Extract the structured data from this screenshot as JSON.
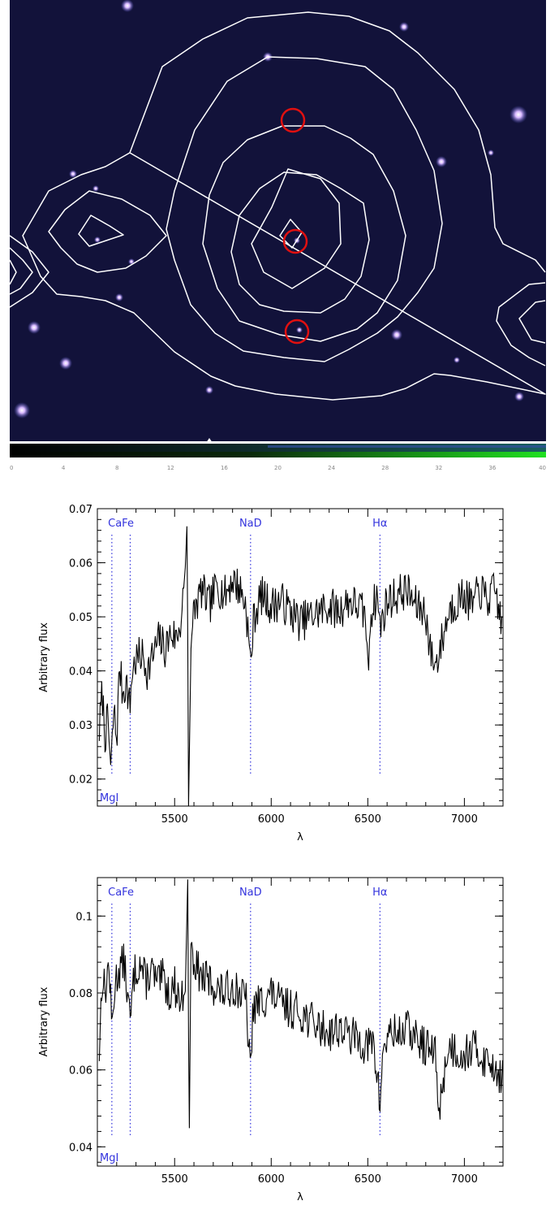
{
  "image_panel": {
    "colorbar_ticks": [
      "0",
      "4",
      "8",
      "12",
      "16",
      "20",
      "24",
      "28",
      "32",
      "36",
      "40"
    ],
    "colors": {
      "sky": "#12123a",
      "contour": "#ffffff",
      "marker": "#e01010"
    }
  },
  "chart_data": [
    {
      "type": "line",
      "title": "",
      "xlabel": "λ",
      "ylabel": "Arbitrary  flux",
      "xlim": [
        5100,
        7200
      ],
      "ylim": [
        0.015,
        0.07
      ],
      "xticks": [
        5500,
        6000,
        6500,
        7000
      ],
      "yticks": [
        0.02,
        0.03,
        0.04,
        0.05,
        0.06,
        0.07
      ],
      "ytick_labels": [
        "0.02",
        "0.03",
        "0.04",
        "0.05",
        "0.06",
        "0.07"
      ],
      "lines": [
        {
          "label": "MgI",
          "x": 5175,
          "label_pos": "bottom"
        },
        {
          "label": "CaFe",
          "x": 5270,
          "label_pos": "top"
        },
        {
          "label": "NaD",
          "x": 5893,
          "label_pos": "top"
        },
        {
          "label": "Hα",
          "x": 6563,
          "label_pos": "top"
        }
      ],
      "line_color": "#3333dd",
      "series_knots": [
        [
          5110,
          0.029
        ],
        [
          5125,
          0.036
        ],
        [
          5140,
          0.028
        ],
        [
          5155,
          0.031
        ],
        [
          5170,
          0.021
        ],
        [
          5185,
          0.033
        ],
        [
          5200,
          0.027
        ],
        [
          5215,
          0.041
        ],
        [
          5230,
          0.036
        ],
        [
          5250,
          0.038
        ],
        [
          5268,
          0.033
        ],
        [
          5280,
          0.04
        ],
        [
          5300,
          0.042
        ],
        [
          5330,
          0.043
        ],
        [
          5360,
          0.04
        ],
        [
          5390,
          0.043
        ],
        [
          5420,
          0.046
        ],
        [
          5450,
          0.044
        ],
        [
          5480,
          0.047
        ],
        [
          5510,
          0.046
        ],
        [
          5535,
          0.05
        ],
        [
          5555,
          0.059
        ],
        [
          5565,
          0.068
        ],
        [
          5572,
          0.015
        ],
        [
          5585,
          0.045
        ],
        [
          5600,
          0.051
        ],
        [
          5640,
          0.055
        ],
        [
          5680,
          0.052
        ],
        [
          5720,
          0.056
        ],
        [
          5760,
          0.054
        ],
        [
          5800,
          0.057
        ],
        [
          5840,
          0.055
        ],
        [
          5870,
          0.052
        ],
        [
          5893,
          0.041
        ],
        [
          5910,
          0.05
        ],
        [
          5950,
          0.054
        ],
        [
          6000,
          0.052
        ],
        [
          6050,
          0.053
        ],
        [
          6100,
          0.051
        ],
        [
          6150,
          0.049
        ],
        [
          6200,
          0.05
        ],
        [
          6250,
          0.051
        ],
        [
          6300,
          0.052
        ],
        [
          6350,
          0.051
        ],
        [
          6400,
          0.053
        ],
        [
          6450,
          0.052
        ],
        [
          6490,
          0.05
        ],
        [
          6500,
          0.039
        ],
        [
          6515,
          0.051
        ],
        [
          6550,
          0.054
        ],
        [
          6563,
          0.048
        ],
        [
          6600,
          0.053
        ],
        [
          6650,
          0.054
        ],
        [
          6700,
          0.055
        ],
        [
          6750,
          0.052
        ],
        [
          6800,
          0.051
        ],
        [
          6820,
          0.044
        ],
        [
          6850,
          0.041
        ],
        [
          6880,
          0.045
        ],
        [
          6920,
          0.051
        ],
        [
          6960,
          0.053
        ],
        [
          7000,
          0.054
        ],
        [
          7040,
          0.052
        ],
        [
          7080,
          0.055
        ],
        [
          7120,
          0.053
        ],
        [
          7160,
          0.055
        ],
        [
          7200,
          0.047
        ]
      ]
    },
    {
      "type": "line",
      "title": "",
      "xlabel": "λ",
      "ylabel": "Arbitrary  flux",
      "xlim": [
        5100,
        7200
      ],
      "ylim": [
        0.035,
        0.11
      ],
      "xticks": [
        5500,
        6000,
        6500,
        7000
      ],
      "yticks": [
        0.04,
        0.06,
        0.08,
        0.1
      ],
      "ytick_labels": [
        "0.04",
        "0.06",
        "0.08",
        "0.1"
      ],
      "lines": [
        {
          "label": "MgI",
          "x": 5175,
          "label_pos": "bottom"
        },
        {
          "label": "CaFe",
          "x": 5270,
          "label_pos": "top"
        },
        {
          "label": "NaD",
          "x": 5893,
          "label_pos": "top"
        },
        {
          "label": "Hα",
          "x": 6563,
          "label_pos": "top"
        }
      ],
      "line_color": "#3333dd",
      "series_knots": [
        [
          5110,
          0.065
        ],
        [
          5125,
          0.085
        ],
        [
          5140,
          0.08
        ],
        [
          5160,
          0.088
        ],
        [
          5175,
          0.07
        ],
        [
          5190,
          0.082
        ],
        [
          5210,
          0.086
        ],
        [
          5240,
          0.088
        ],
        [
          5270,
          0.072
        ],
        [
          5290,
          0.085
        ],
        [
          5320,
          0.088
        ],
        [
          5350,
          0.083
        ],
        [
          5380,
          0.086
        ],
        [
          5410,
          0.082
        ],
        [
          5440,
          0.084
        ],
        [
          5470,
          0.08
        ],
        [
          5500,
          0.082
        ],
        [
          5530,
          0.078
        ],
        [
          5555,
          0.08
        ],
        [
          5568,
          0.11
        ],
        [
          5575,
          0.038
        ],
        [
          5585,
          0.095
        ],
        [
          5600,
          0.088
        ],
        [
          5640,
          0.084
        ],
        [
          5680,
          0.083
        ],
        [
          5720,
          0.081
        ],
        [
          5760,
          0.08
        ],
        [
          5800,
          0.082
        ],
        [
          5840,
          0.08
        ],
        [
          5870,
          0.078
        ],
        [
          5893,
          0.058
        ],
        [
          5905,
          0.076
        ],
        [
          5950,
          0.078
        ],
        [
          6000,
          0.08
        ],
        [
          6050,
          0.077
        ],
        [
          6100,
          0.076
        ],
        [
          6150,
          0.075
        ],
        [
          6200,
          0.073
        ],
        [
          6250,
          0.071
        ],
        [
          6300,
          0.07
        ],
        [
          6350,
          0.071
        ],
        [
          6400,
          0.069
        ],
        [
          6450,
          0.068
        ],
        [
          6500,
          0.066
        ],
        [
          6530,
          0.067
        ],
        [
          6563,
          0.051
        ],
        [
          6580,
          0.066
        ],
        [
          6620,
          0.07
        ],
        [
          6660,
          0.069
        ],
        [
          6700,
          0.071
        ],
        [
          6750,
          0.068
        ],
        [
          6800,
          0.066
        ],
        [
          6850,
          0.064
        ],
        [
          6870,
          0.048
        ],
        [
          6890,
          0.058
        ],
        [
          6920,
          0.066
        ],
        [
          6960,
          0.065
        ],
        [
          7000,
          0.064
        ],
        [
          7040,
          0.066
        ],
        [
          7080,
          0.064
        ],
        [
          7120,
          0.062
        ],
        [
          7160,
          0.061
        ],
        [
          7200,
          0.057
        ]
      ]
    }
  ]
}
